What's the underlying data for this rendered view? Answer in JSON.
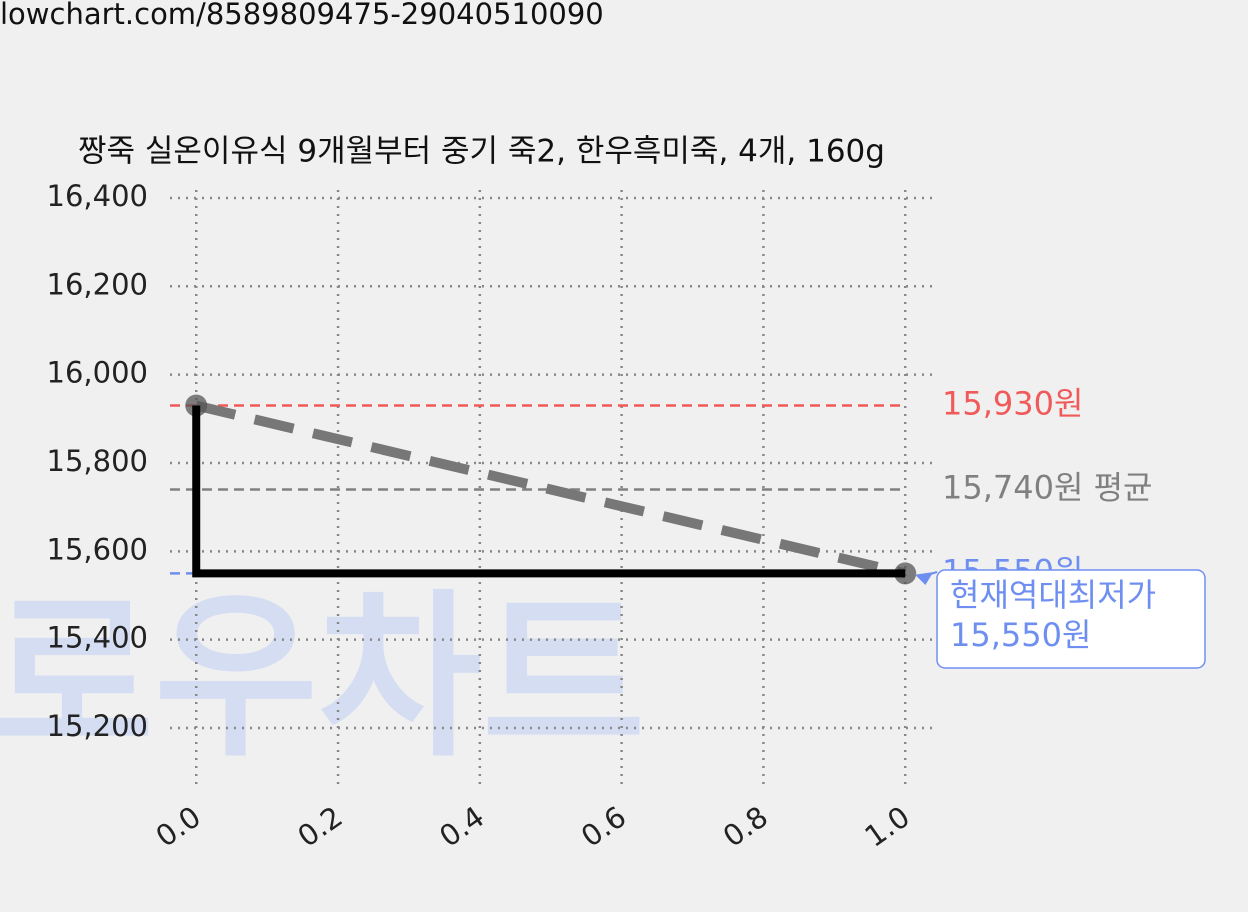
{
  "url": "lowchart.com/8589809475-29040510090",
  "chart_data": {
    "type": "line",
    "title": "짱죽 실온이유식 9개월부터 중기 죽2, 한우흑미죽, 4개, 160g",
    "watermark": "로우차트",
    "x": [
      0,
      1
    ],
    "series": [
      {
        "name": "price",
        "color": "#777777",
        "values": [
          15930,
          15550
        ],
        "style": "dashed",
        "markers": true
      },
      {
        "name": "lowest",
        "color": "#000000",
        "values": [
          15930,
          15550
        ],
        "style": "step"
      }
    ],
    "hlines": [
      {
        "value": 15930,
        "label": "15,930원",
        "color": "#f05a5a"
      },
      {
        "value": 15740,
        "label": "15,740원 평균",
        "color": "#808080"
      },
      {
        "value": 15550,
        "label": "15,550원",
        "color": "#6f8ff0"
      }
    ],
    "annotation": {
      "lines": [
        "현재역대최저가",
        "15,550원"
      ],
      "x": 1,
      "y": 15550,
      "color": "#6f8ff0"
    },
    "xlim": [
      -0.037,
      1.042
    ],
    "ylim": [
      15071,
      16418
    ],
    "xticks": [
      {
        "value": 0,
        "label": "0.0"
      },
      0.2,
      0.4,
      0.6,
      0.8,
      {
        "value": 1,
        "label": "1.0"
      }
    ],
    "yticks": [
      {
        "value": 15200,
        "label": "15,200"
      },
      {
        "value": 15400,
        "label": "15,400"
      },
      {
        "value": 15600,
        "label": "15,600"
      },
      {
        "value": 15800,
        "label": "15,800"
      },
      {
        "value": 16000,
        "label": "16,000"
      },
      {
        "value": 16200,
        "label": "16,200"
      },
      {
        "value": 16400,
        "label": "16,400"
      }
    ],
    "grid": true
  }
}
